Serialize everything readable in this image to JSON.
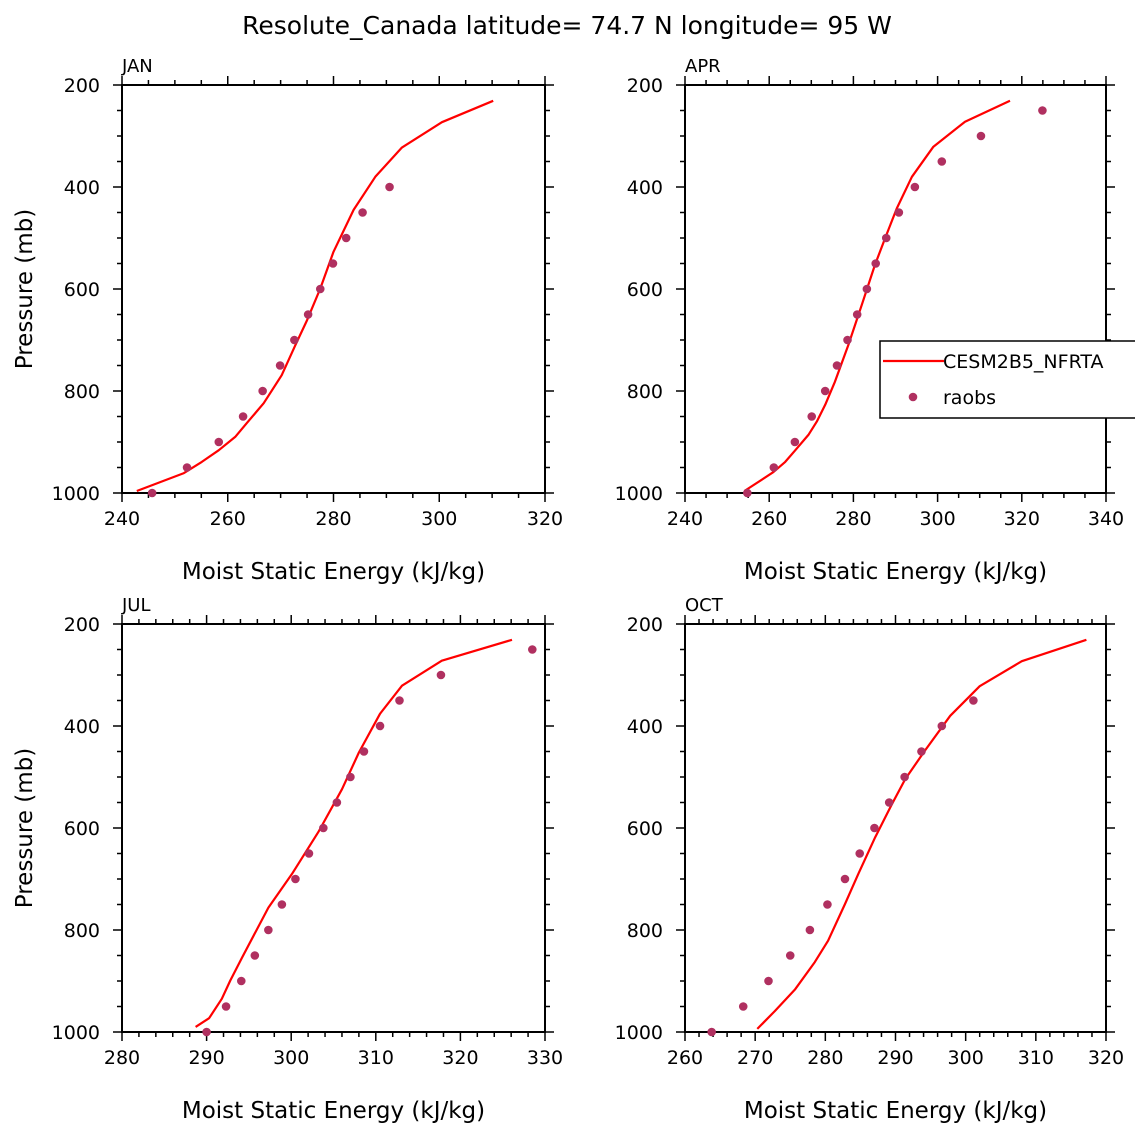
{
  "colors": {
    "model": "#ff0000",
    "obs": "#b03060",
    "axis": "#000000"
  },
  "chart_data": {
    "type": "line",
    "title": "Resolute_Canada  latitude= 74.7 N longitude= 95 W",
    "legend": {
      "placement": "right-middle of APR panel",
      "entries": [
        {
          "name": "CESM2B5_NFRTA",
          "style": "line"
        },
        {
          "name": "raobs",
          "style": "marker"
        }
      ]
    },
    "panels": [
      {
        "label": "JAN",
        "xlabel": "Moist Static Energy (kJ/kg)",
        "ylabel": "Pressure (mb)",
        "xlim": [
          240,
          320
        ],
        "xticks": [
          240,
          260,
          280,
          300,
          320
        ],
        "xminor": 5,
        "ylim": [
          1000,
          200
        ],
        "yticks": [
          200,
          400,
          600,
          800,
          1000
        ],
        "yminor": 50,
        "model": {
          "x": [
            242.8,
            251.7,
            255.1,
            258.3,
            261.4,
            263.6,
            266.8,
            270.2,
            272.8,
            275.0,
            277.5,
            280.0,
            283.8,
            287.9,
            292.9,
            300.5,
            310.2
          ],
          "p": [
            996,
            961,
            939,
            916,
            890,
            863,
            824,
            769,
            710,
            661,
            599,
            527,
            445,
            380,
            323,
            273,
            231
          ]
        },
        "raobs": {
          "x": [
            245.7,
            252.3,
            258.3,
            262.9,
            266.6,
            269.9,
            272.6,
            275.2,
            277.5,
            279.9,
            282.4,
            285.5,
            290.6
          ],
          "p": [
            1000,
            950,
            900,
            850,
            800,
            750,
            700,
            650,
            600,
            550,
            500,
            450,
            400
          ]
        }
      },
      {
        "label": "APR",
        "xlabel": "Moist Static Energy (kJ/kg)",
        "ylabel": "",
        "xlim": [
          240,
          340
        ],
        "xticks": [
          240,
          260,
          280,
          300,
          320,
          340
        ],
        "xminor": 5,
        "ylim": [
          1000,
          200
        ],
        "yticks": [
          200,
          400,
          600,
          800,
          1000
        ],
        "yminor": 50,
        "model": {
          "x": [
            254.1,
            261.0,
            263.8,
            266.1,
            269.3,
            271.3,
            273.3,
            275.6,
            278.8,
            282.0,
            285.1,
            287.5,
            290.3,
            293.9,
            299.0,
            306.5,
            317.2
          ],
          "p": [
            996,
            959,
            939,
            917,
            886,
            860,
            827,
            782,
            710,
            631,
            553,
            501,
            442,
            380,
            321,
            272,
            231
          ]
        },
        "raobs": {
          "x": [
            254.8,
            261.1,
            266.1,
            270.1,
            273.3,
            276.1,
            278.6,
            280.9,
            283.2,
            285.3,
            287.8,
            290.8,
            294.6,
            301.0,
            310.3,
            324.9
          ],
          "p": [
            1000,
            950,
            900,
            850,
            800,
            750,
            700,
            650,
            600,
            550,
            500,
            450,
            400,
            350,
            300,
            250
          ]
        }
      },
      {
        "label": "JUL",
        "xlabel": "Moist Static Energy (kJ/kg)",
        "ylabel": "Pressure (mb)",
        "xlim": [
          280,
          330
        ],
        "xticks": [
          280,
          290,
          300,
          310,
          320,
          330
        ],
        "xminor": 2,
        "ylim": [
          1000,
          200
        ],
        "yticks": [
          200,
          400,
          600,
          800,
          1000
        ],
        "yminor": 50,
        "model": {
          "x": [
            288.7,
            290.3,
            291.8,
            292.8,
            294.2,
            297.3,
            300.1,
            303.2,
            306.0,
            308.0,
            310.5,
            313.1,
            317.8,
            326.1
          ],
          "p": [
            990,
            973,
            935,
            899,
            854,
            756,
            690,
            608,
            524,
            452,
            376,
            321,
            272,
            231
          ]
        },
        "raobs": {
          "x": [
            290.0,
            292.3,
            294.1,
            295.7,
            297.3,
            298.9,
            300.5,
            302.1,
            303.8,
            305.4,
            307.0,
            308.6,
            310.5,
            312.8,
            317.7,
            328.5
          ],
          "p": [
            1000,
            950,
            900,
            850,
            800,
            750,
            700,
            650,
            600,
            550,
            500,
            450,
            400,
            350,
            300,
            250
          ]
        }
      },
      {
        "label": "OCT",
        "xlabel": "Moist Static Energy (kJ/kg)",
        "ylabel": "",
        "xlim": [
          260,
          320
        ],
        "xticks": [
          260,
          270,
          280,
          290,
          300,
          310,
          320
        ],
        "xminor": 2,
        "ylim": [
          1000,
          200
        ],
        "yticks": [
          200,
          400,
          600,
          800,
          1000
        ],
        "yminor": 50,
        "model": {
          "x": [
            270.3,
            272.8,
            275.7,
            278.5,
            280.4,
            282.8,
            284.7,
            287.1,
            289.5,
            291.4,
            294.2,
            297.8,
            302.0,
            308.0,
            317.2
          ],
          "p": [
            994,
            959,
            916,
            863,
            821,
            749,
            690,
            618,
            553,
            504,
            448,
            380,
            322,
            273,
            231
          ]
        },
        "raobs": {
          "x": [
            263.8,
            268.3,
            271.9,
            275.0,
            277.8,
            280.3,
            282.8,
            284.9,
            287.0,
            289.1,
            291.3,
            293.7,
            296.6,
            301.1
          ],
          "p": [
            1000,
            950,
            900,
            850,
            800,
            750,
            700,
            650,
            600,
            550,
            500,
            450,
            400,
            350
          ]
        }
      }
    ]
  }
}
